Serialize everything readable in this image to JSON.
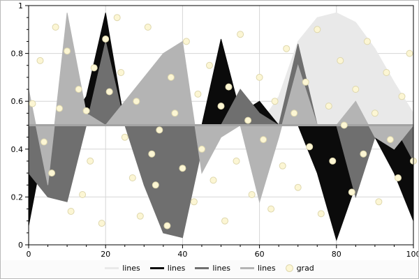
{
  "figure": {
    "background": "#fbfbfb",
    "border_color": "#b9b9b9"
  },
  "chart_data": {
    "type": "area",
    "title": "",
    "xlabel": "",
    "ylabel": "",
    "xlim": [
      0,
      100
    ],
    "ylim": [
      0,
      1
    ],
    "x_ticks": [
      0,
      20,
      40,
      60,
      80,
      100
    ],
    "x_tick_labels": [
      "0",
      "20",
      "40",
      "60",
      "80",
      "100"
    ],
    "y_ticks": [
      0,
      0.2,
      0.4,
      0.6,
      0.8,
      1
    ],
    "y_tick_labels": [
      "0",
      "0.2",
      "0.4",
      "0.6",
      "0.8",
      "1"
    ],
    "minor_x_step": 5,
    "minor_y_step": 0.05,
    "grid": true,
    "grid_color": "#d6d6d6",
    "baseline": 0.5,
    "baseline_color": "#a3a3a3",
    "x": [
      0,
      5,
      10,
      15,
      20,
      25,
      30,
      35,
      40,
      45,
      50,
      55,
      60,
      65,
      70,
      75,
      80,
      85,
      90,
      95,
      100
    ],
    "series": [
      {
        "name": "lines",
        "color": "#e9e9e9",
        "values": [
          0.5,
          0.5,
          0.5,
          0.5,
          0.5,
          0.5,
          0.5,
          0.5,
          0.5,
          0.5,
          0.5,
          0.5,
          0.5,
          0.62,
          0.85,
          0.95,
          0.97,
          0.93,
          0.82,
          0.68,
          0.55
        ]
      },
      {
        "name": "lines",
        "color": "#0b0b0b",
        "values": [
          0.08,
          0.5,
          0.5,
          0.62,
          0.97,
          0.5,
          0.5,
          0.5,
          0.5,
          0.5,
          0.86,
          0.55,
          0.6,
          0.5,
          0.5,
          0.3,
          0.02,
          0.25,
          0.45,
          0.3,
          0.1
        ]
      },
      {
        "name": "lines",
        "color": "#6f6f6f",
        "values": [
          0.3,
          0.2,
          0.18,
          0.5,
          0.85,
          0.5,
          0.25,
          0.05,
          0.03,
          0.4,
          0.5,
          0.65,
          0.55,
          0.5,
          0.84,
          0.5,
          0.5,
          0.2,
          0.45,
          0.5,
          0.35
        ]
      },
      {
        "name": "lines",
        "color": "#b4b4b4",
        "values": [
          0.65,
          0.25,
          0.97,
          0.55,
          0.5,
          0.6,
          0.7,
          0.8,
          0.85,
          0.3,
          0.45,
          0.5,
          0.18,
          0.45,
          0.75,
          0.5,
          0.5,
          0.6,
          0.45,
          0.4,
          0.5
        ]
      }
    ],
    "scatter": {
      "name": "grad",
      "fill": "#fcf6d4",
      "edge": "#ded7ad",
      "radius": 4.5,
      "points": [
        [
          1,
          0.59
        ],
        [
          3,
          0.77
        ],
        [
          4,
          0.43
        ],
        [
          6,
          0.3
        ],
        [
          7,
          0.91
        ],
        [
          8,
          0.57
        ],
        [
          10,
          0.81
        ],
        [
          11,
          0.14
        ],
        [
          13,
          0.65
        ],
        [
          14,
          0.21
        ],
        [
          15,
          0.56
        ],
        [
          16,
          0.35
        ],
        [
          17,
          0.74
        ],
        [
          19,
          0.09
        ],
        [
          20,
          0.86
        ],
        [
          21,
          0.64
        ],
        [
          23,
          0.95
        ],
        [
          24,
          0.72
        ],
        [
          25,
          0.45
        ],
        [
          27,
          0.28
        ],
        [
          28,
          0.6
        ],
        [
          29,
          0.12
        ],
        [
          31,
          0.91
        ],
        [
          32,
          0.38
        ],
        [
          33,
          0.25
        ],
        [
          34,
          0.48
        ],
        [
          36,
          0.08
        ],
        [
          37,
          0.7
        ],
        [
          38,
          0.55
        ],
        [
          40,
          0.32
        ],
        [
          41,
          0.85
        ],
        [
          43,
          0.18
        ],
        [
          44,
          0.63
        ],
        [
          45,
          0.4
        ],
        [
          47,
          0.75
        ],
        [
          48,
          0.27
        ],
        [
          50,
          0.58
        ],
        [
          51,
          0.1
        ],
        [
          52,
          0.66
        ],
        [
          54,
          0.35
        ],
        [
          55,
          0.88
        ],
        [
          57,
          0.52
        ],
        [
          58,
          0.21
        ],
        [
          60,
          0.7
        ],
        [
          61,
          0.44
        ],
        [
          63,
          0.15
        ],
        [
          64,
          0.6
        ],
        [
          66,
          0.33
        ],
        [
          67,
          0.82
        ],
        [
          69,
          0.55
        ],
        [
          70,
          0.24
        ],
        [
          72,
          0.68
        ],
        [
          73,
          0.41
        ],
        [
          75,
          0.9
        ],
        [
          76,
          0.13
        ],
        [
          78,
          0.58
        ],
        [
          79,
          0.35
        ],
        [
          81,
          0.77
        ],
        [
          82,
          0.5
        ],
        [
          84,
          0.22
        ],
        [
          85,
          0.65
        ],
        [
          87,
          0.38
        ],
        [
          88,
          0.85
        ],
        [
          90,
          0.55
        ],
        [
          91,
          0.18
        ],
        [
          93,
          0.72
        ],
        [
          94,
          0.44
        ],
        [
          96,
          0.28
        ],
        [
          97,
          0.62
        ],
        [
          99,
          0.8
        ],
        [
          100,
          0.35
        ]
      ]
    },
    "legend": {
      "position": "bottom-center",
      "items": [
        {
          "label": "lines",
          "color": "#e9e9e9",
          "type": "line"
        },
        {
          "label": "lines",
          "color": "#0b0b0b",
          "type": "line"
        },
        {
          "label": "lines",
          "color": "#6f6f6f",
          "type": "line"
        },
        {
          "label": "lines",
          "color": "#b4b4b4",
          "type": "line"
        },
        {
          "label": "grad",
          "color": "#fcf6d4",
          "edge": "#ded7ad",
          "type": "dot"
        }
      ]
    }
  }
}
